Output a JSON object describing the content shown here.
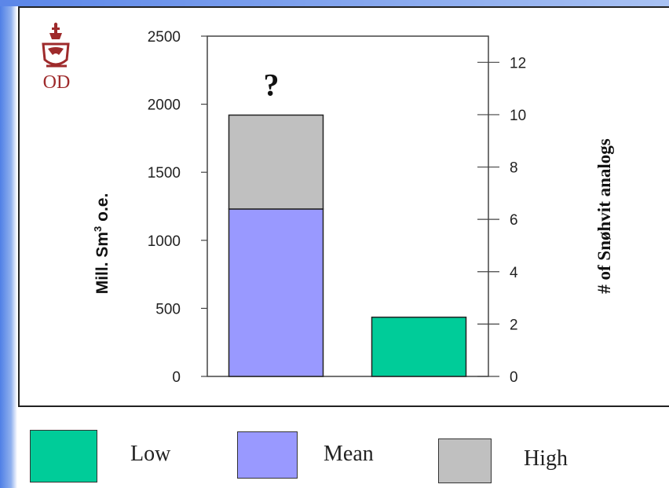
{
  "logo": {
    "text": "OD",
    "color": "#9e2a2b"
  },
  "chart_data": {
    "type": "bar",
    "ylabel": "Mill. Sm³ o.e.",
    "ylabel_parts": {
      "base": "Mill. Sm",
      "sup": "3",
      "rest": " o.e."
    },
    "y2label": "# of Snøhvit analogs",
    "ylim": [
      0,
      2500
    ],
    "y2lim": [
      0,
      13
    ],
    "yticks": [
      "0",
      "500",
      "1000",
      "1500",
      "2000",
      "2500"
    ],
    "y2ticks": [
      "0",
      "2",
      "4",
      "6",
      "8",
      "10",
      "12"
    ],
    "bars": [
      {
        "annotation": "?",
        "segments": [
          {
            "series": "Mean",
            "from": 0,
            "to": 1230
          },
          {
            "series": "High",
            "from": 1230,
            "to": 1920
          }
        ]
      },
      {
        "annotation": "",
        "segments": [
          {
            "series": "Low",
            "from": 0,
            "to": 435
          }
        ]
      }
    ],
    "series_colors": {
      "Low": "#00cc99",
      "Mean": "#9999ff",
      "High": "#c0c0c0"
    },
    "grid": false
  },
  "legend": [
    {
      "label": "Low",
      "color": "#00cc99"
    },
    {
      "label": "Mean",
      "color": "#9999ff"
    },
    {
      "label": "High",
      "color": "#c0c0c0"
    }
  ]
}
